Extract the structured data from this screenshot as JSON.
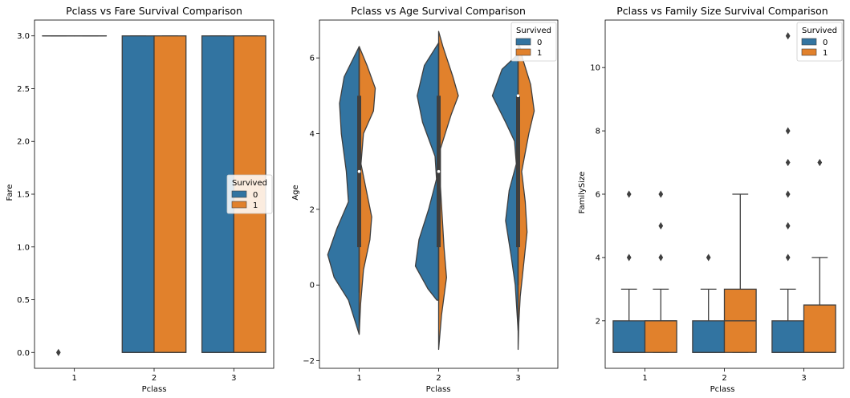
{
  "colors": {
    "survived_0": "#3274a1",
    "survived_1": "#e1812c",
    "edge": "#3f3f3f"
  },
  "chart_data": [
    {
      "type": "box",
      "title": "Pclass vs Fare Survival Comparison",
      "xlabel": "Pclass",
      "ylabel": "Fare",
      "categories": [
        "1",
        "2",
        "3"
      ],
      "ylim": [
        -0.15,
        3.15
      ],
      "yticks": [
        0.0,
        0.5,
        1.0,
        1.5,
        2.0,
        2.5,
        3.0
      ],
      "ytick_labels": [
        "0.0",
        "0.5",
        "1.0",
        "1.5",
        "2.0",
        "2.5",
        "3.0"
      ],
      "legend": {
        "title": "Survived",
        "entries": [
          "0",
          "1"
        ],
        "placement": "center-right"
      },
      "series": [
        {
          "name": "0",
          "boxes": [
            {
              "q1": 3,
              "median": 3,
              "q3": 3,
              "whislo": 3,
              "whishi": 3,
              "fliers": [
                0
              ]
            },
            {
              "q1": 0,
              "median": 0,
              "q3": 3,
              "whislo": 0,
              "whishi": 3,
              "fliers": []
            },
            {
              "q1": 0,
              "median": 0,
              "q3": 3,
              "whislo": 0,
              "whishi": 3,
              "fliers": []
            }
          ]
        },
        {
          "name": "1",
          "boxes": [
            {
              "q1": 3,
              "median": 3,
              "q3": 3,
              "whislo": 3,
              "whishi": 3,
              "fliers": []
            },
            {
              "q1": 0,
              "median": 0,
              "q3": 3,
              "whislo": 0,
              "whishi": 3,
              "fliers": []
            },
            {
              "q1": 0,
              "median": 0,
              "q3": 3,
              "whislo": 0,
              "whishi": 3,
              "fliers": []
            }
          ]
        }
      ]
    },
    {
      "type": "violin",
      "title": "Pclass vs Age Survival Comparison",
      "xlabel": "Pclass",
      "ylabel": "Age",
      "categories": [
        "1",
        "2",
        "3"
      ],
      "ylim": [
        -2.2,
        7.0
      ],
      "yticks": [
        -2,
        0,
        2,
        4,
        6
      ],
      "ytick_labels": [
        "−2",
        "0",
        "2",
        "4",
        "6"
      ],
      "legend": {
        "title": "Survived",
        "entries": [
          "0",
          "1"
        ],
        "placement": "upper-right"
      },
      "violins": [
        {
          "range": [
            -1.3,
            6.3
          ],
          "left": [
            [
              6.3,
              0.0
            ],
            [
              5.5,
              0.42
            ],
            [
              4.8,
              0.55
            ],
            [
              4.0,
              0.5
            ],
            [
              3.0,
              0.36
            ],
            [
              2.2,
              0.3
            ],
            [
              1.5,
              0.62
            ],
            [
              0.8,
              0.88
            ],
            [
              0.2,
              0.7
            ],
            [
              -0.4,
              0.3
            ],
            [
              -1.3,
              0.0
            ]
          ],
          "right": [
            [
              6.3,
              0.0
            ],
            [
              5.8,
              0.22
            ],
            [
              5.2,
              0.45
            ],
            [
              4.6,
              0.4
            ],
            [
              4.0,
              0.12
            ],
            [
              3.2,
              0.05
            ],
            [
              2.5,
              0.2
            ],
            [
              1.8,
              0.35
            ],
            [
              1.2,
              0.3
            ],
            [
              0.4,
              0.12
            ],
            [
              -0.5,
              0.04
            ],
            [
              -1.3,
              0.0
            ]
          ],
          "q1": 1,
          "median": 3,
          "q3": 5,
          "whislo": -0.2,
          "whishi": 6.3
        },
        {
          "range": [
            -1.7,
            6.7
          ],
          "left": [
            [
              6.4,
              0.0
            ],
            [
              5.8,
              0.4
            ],
            [
              5.0,
              0.6
            ],
            [
              4.3,
              0.45
            ],
            [
              3.4,
              0.1
            ],
            [
              2.8,
              0.06
            ],
            [
              2.0,
              0.28
            ],
            [
              1.2,
              0.55
            ],
            [
              0.5,
              0.65
            ],
            [
              -0.1,
              0.3
            ],
            [
              -0.4,
              0.05
            ]
          ],
          "right": [
            [
              6.7,
              0.0
            ],
            [
              6.3,
              0.12
            ],
            [
              5.5,
              0.4
            ],
            [
              5.0,
              0.55
            ],
            [
              4.5,
              0.35
            ],
            [
              3.6,
              0.05
            ],
            [
              2.6,
              0.05
            ],
            [
              1.8,
              0.1
            ],
            [
              1.0,
              0.15
            ],
            [
              0.2,
              0.22
            ],
            [
              -0.8,
              0.08
            ],
            [
              -1.7,
              0.0
            ]
          ],
          "q1": 1,
          "median": 3,
          "q3": 5,
          "whislo": -0.4,
          "whishi": 6.4
        },
        {
          "range": [
            -1.7,
            6.5
          ],
          "left": [
            [
              6.1,
              0.0
            ],
            [
              5.7,
              0.45
            ],
            [
              5.0,
              0.72
            ],
            [
              4.3,
              0.35
            ],
            [
              3.8,
              0.1
            ],
            [
              3.2,
              0.05
            ],
            [
              2.5,
              0.25
            ],
            [
              1.7,
              0.35
            ],
            [
              0.8,
              0.2
            ],
            [
              0.0,
              0.08
            ],
            [
              -1.2,
              0.0
            ]
          ],
          "right": [
            [
              6.5,
              0.0
            ],
            [
              6.0,
              0.12
            ],
            [
              5.3,
              0.35
            ],
            [
              4.6,
              0.45
            ],
            [
              4.0,
              0.3
            ],
            [
              3.0,
              0.1
            ],
            [
              2.2,
              0.2
            ],
            [
              1.4,
              0.25
            ],
            [
              0.5,
              0.15
            ],
            [
              -0.3,
              0.06
            ],
            [
              -1.0,
              0.02
            ],
            [
              -1.7,
              0.0
            ]
          ],
          "q1": 1,
          "median": 5,
          "q3": 5,
          "whislo": 0,
          "whishi": 6
        }
      ]
    },
    {
      "type": "box",
      "title": "Pclass vs Family Size Survival Comparison",
      "xlabel": "Pclass",
      "ylabel": "FamilySize",
      "categories": [
        "1",
        "2",
        "3"
      ],
      "ylim": [
        0.5,
        11.5
      ],
      "yticks": [
        2,
        4,
        6,
        8,
        10
      ],
      "ytick_labels": [
        "2",
        "4",
        "6",
        "8",
        "10"
      ],
      "legend": {
        "title": "Survived",
        "entries": [
          "0",
          "1"
        ],
        "placement": "upper-right"
      },
      "series": [
        {
          "name": "0",
          "boxes": [
            {
              "q1": 1,
              "median": 1,
              "q3": 2,
              "whislo": 1,
              "whishi": 3,
              "fliers": [
                4,
                6
              ]
            },
            {
              "q1": 1,
              "median": 1,
              "q3": 2,
              "whislo": 1,
              "whishi": 3,
              "fliers": [
                4
              ]
            },
            {
              "q1": 1,
              "median": 1,
              "q3": 2,
              "whislo": 1,
              "whishi": 3,
              "fliers": [
                4,
                5,
                6,
                7,
                8,
                11
              ]
            }
          ]
        },
        {
          "name": "1",
          "boxes": [
            {
              "q1": 1,
              "median": 2,
              "q3": 2,
              "whislo": 1,
              "whishi": 3,
              "fliers": [
                4,
                5,
                6
              ]
            },
            {
              "q1": 1,
              "median": 2,
              "q3": 3,
              "whislo": 1,
              "whishi": 6,
              "fliers": []
            },
            {
              "q1": 1,
              "median": 1,
              "q3": 2.5,
              "whislo": 1,
              "whishi": 4,
              "fliers": [
                7
              ]
            }
          ]
        }
      ]
    }
  ]
}
